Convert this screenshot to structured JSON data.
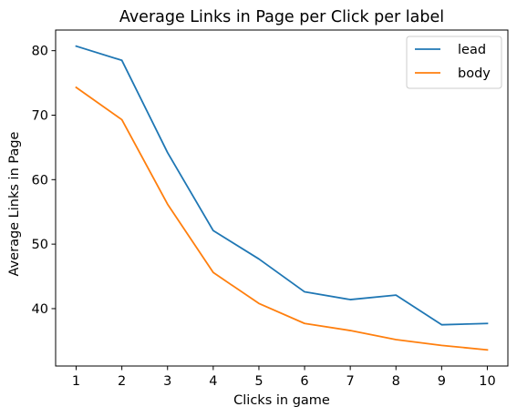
{
  "chart_data": {
    "type": "line",
    "title": "Average Links in Page per Click per label",
    "xlabel": "Clicks in game",
    "ylabel": "Average Links in Page",
    "x": [
      1,
      2,
      3,
      4,
      5,
      6,
      7,
      8,
      9,
      10
    ],
    "xlim": [
      0.55,
      10.45
    ],
    "ylim": [
      31.1,
      83.2
    ],
    "xticks": [
      1,
      2,
      3,
      4,
      5,
      6,
      7,
      8,
      9,
      10
    ],
    "yticks": [
      40,
      50,
      60,
      70,
      80
    ],
    "grid": false,
    "legend_position": "top-right",
    "series": [
      {
        "name": "lead",
        "color": "#1f77b4",
        "values": [
          80.7,
          78.5,
          64.2,
          52.1,
          47.7,
          42.6,
          41.4,
          42.1,
          37.5,
          37.7
        ]
      },
      {
        "name": "body",
        "color": "#ff7f0e",
        "values": [
          74.3,
          69.3,
          56.2,
          45.6,
          40.8,
          37.7,
          36.6,
          35.2,
          34.3,
          33.6
        ]
      }
    ]
  }
}
